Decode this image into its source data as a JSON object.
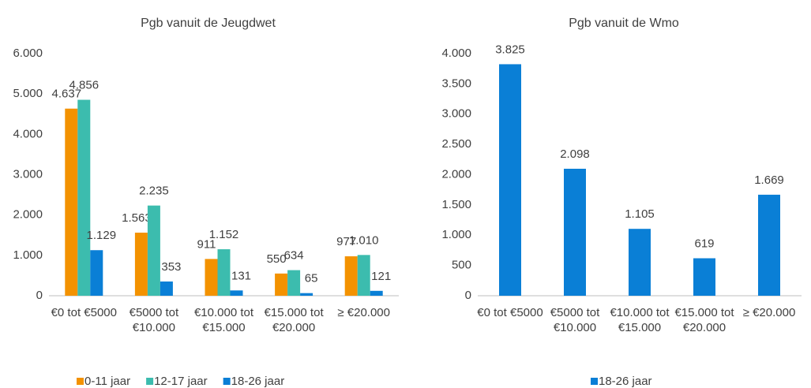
{
  "chart_data": [
    {
      "type": "bar",
      "title": "Pgb vanuit de Jeugdwet",
      "categories": [
        "€0 tot €5000",
        "€5000 tot €10.000",
        "€10.000 tot €15.000",
        "€15.000 tot €20.000",
        "≥ €20.000"
      ],
      "series": [
        {
          "name": "0-11 jaar",
          "color": "#f39200",
          "values": [
            4637,
            1563,
            911,
            550,
            977
          ],
          "value_labels": [
            "4.637",
            "1.563",
            "911",
            "550",
            "977"
          ]
        },
        {
          "name": "12-17 jaar",
          "color": "#3cbcae",
          "values": [
            4856,
            2235,
            1152,
            634,
            1010
          ],
          "value_labels": [
            "4.856",
            "2.235",
            "1.152",
            "634",
            "1.010"
          ]
        },
        {
          "name": "18-26 jaar",
          "color": "#0a7fd6",
          "values": [
            1129,
            353,
            131,
            65,
            121
          ],
          "value_labels": [
            "1.129",
            "353",
            "131",
            "65",
            "121"
          ]
        }
      ],
      "ylim": [
        0,
        6000
      ],
      "yticks": [
        0,
        {
          "value": 1000,
          "label": "1.000"
        },
        {
          "value": 2000,
          "label": "2.000"
        },
        {
          "value": 3000,
          "label": "3.000"
        },
        {
          "value": 4000,
          "label": "4.000"
        },
        {
          "value": 5000,
          "label": "5.000"
        },
        {
          "value": 6000,
          "label": "6.000"
        }
      ],
      "legend": "bottom"
    },
    {
      "type": "bar",
      "title": "Pgb vanuit de Wmo",
      "categories": [
        "€0 tot €5000",
        "€5000 tot €10.000",
        "€10.000 tot €15.000",
        "€15.000 tot €20.000",
        "≥ €20.000"
      ],
      "series": [
        {
          "name": "18-26 jaar",
          "color": "#0a7fd6",
          "values": [
            3825,
            2098,
            1105,
            619,
            1669
          ],
          "value_labels": [
            "3.825",
            "2.098",
            "1.105",
            "619",
            "1.669"
          ]
        }
      ],
      "ylim": [
        0,
        4000
      ],
      "yticks": [
        0,
        500,
        {
          "value": 1000,
          "label": "1.000"
        },
        {
          "value": 1500,
          "label": "1.500"
        },
        {
          "value": 2000,
          "label": "2.000"
        },
        {
          "value": 2500,
          "label": "2.500"
        },
        {
          "value": 3000,
          "label": "3.000"
        },
        {
          "value": 3500,
          "label": "3.500"
        },
        {
          "value": 4000,
          "label": "4.000"
        }
      ],
      "legend": "bottom"
    }
  ]
}
